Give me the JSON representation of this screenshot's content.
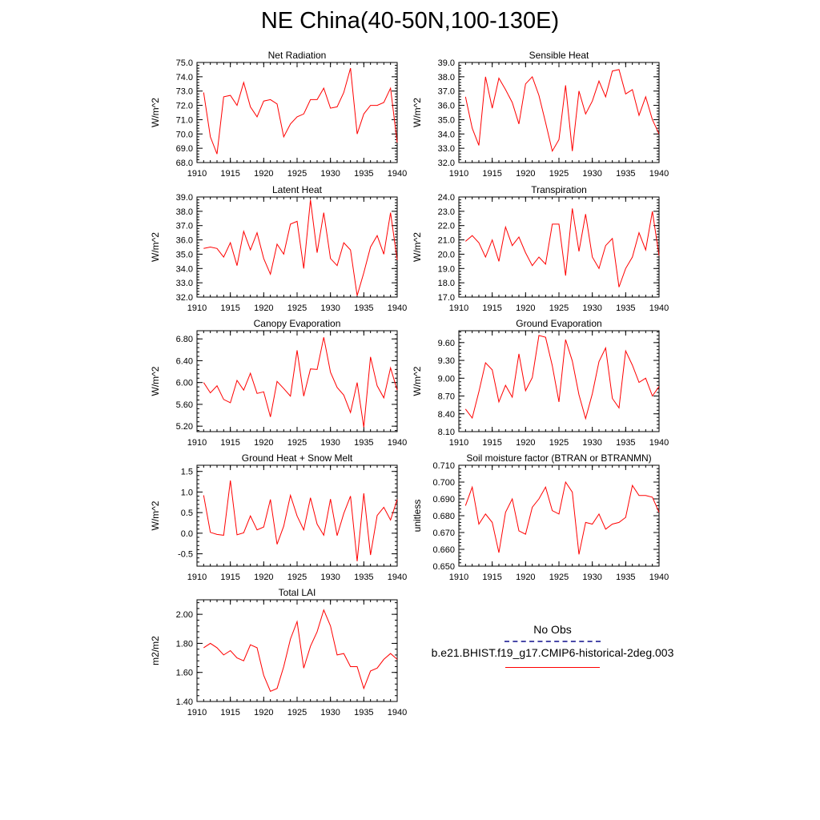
{
  "title": "NE China(40-50N,100-130E)",
  "legend": {
    "obs_label": "No Obs",
    "model_label": "b.e21.BHIST.f19_g17.CMIP6-historical-2deg.003",
    "obs_color": "#4a4aa8",
    "model_color": "#ff0000"
  },
  "chart_data": [
    {
      "type": "line",
      "title": "Net Radiation",
      "ylabel": "W/m^2",
      "xlim": [
        1910,
        1940
      ],
      "ylim": [
        68.0,
        75.0
      ],
      "yticks": [
        "68.0",
        "69.0",
        "70.0",
        "71.0",
        "72.0",
        "73.0",
        "74.0",
        "75.0"
      ],
      "ytick_values": [
        68,
        69,
        70,
        71,
        72,
        73,
        74,
        75
      ],
      "xticks": [
        1910,
        1915,
        1920,
        1925,
        1930,
        1935,
        1940
      ],
      "series": [
        {
          "color": "#ff0000",
          "x": [
            1911,
            1912,
            1913,
            1914,
            1915,
            1916,
            1917,
            1918,
            1919,
            1920,
            1921,
            1922,
            1923,
            1924,
            1925,
            1926,
            1927,
            1928,
            1929,
            1930,
            1931,
            1932,
            1933,
            1934,
            1935,
            1936,
            1937,
            1938,
            1939,
            1940
          ],
          "values": [
            72.9,
            69.8,
            68.6,
            72.6,
            72.7,
            72.0,
            73.6,
            71.9,
            71.2,
            72.3,
            72.4,
            72.1,
            69.8,
            70.7,
            71.2,
            71.4,
            72.4,
            72.4,
            73.2,
            71.8,
            71.9,
            72.9,
            74.6,
            70.0,
            71.4,
            72.0,
            72.0,
            72.2,
            73.2,
            69.4
          ]
        }
      ]
    },
    {
      "type": "line",
      "title": "Sensible Heat",
      "ylabel": "W/m^2",
      "xlim": [
        1910,
        1940
      ],
      "ylim": [
        32.0,
        39.0
      ],
      "yticks": [
        "32.0",
        "33.0",
        "34.0",
        "35.0",
        "36.0",
        "37.0",
        "38.0",
        "39.0"
      ],
      "ytick_values": [
        32,
        33,
        34,
        35,
        36,
        37,
        38,
        39
      ],
      "xticks": [
        1910,
        1915,
        1920,
        1925,
        1930,
        1935,
        1940
      ],
      "series": [
        {
          "color": "#ff0000",
          "x": [
            1911,
            1912,
            1913,
            1914,
            1915,
            1916,
            1917,
            1918,
            1919,
            1920,
            1921,
            1922,
            1923,
            1924,
            1925,
            1926,
            1927,
            1928,
            1929,
            1930,
            1931,
            1932,
            1933,
            1934,
            1935,
            1936,
            1937,
            1938,
            1939,
            1940
          ],
          "values": [
            36.6,
            34.4,
            33.2,
            38.0,
            35.8,
            37.9,
            37.1,
            36.2,
            34.7,
            37.5,
            38.0,
            36.7,
            34.8,
            32.8,
            33.6,
            37.4,
            32.8,
            37.0,
            35.4,
            36.3,
            37.7,
            36.6,
            38.4,
            38.5,
            36.8,
            37.1,
            35.3,
            36.6,
            35.0,
            34.0
          ]
        }
      ]
    },
    {
      "type": "line",
      "title": "Latent Heat",
      "ylabel": "W/m^2",
      "xlim": [
        1910,
        1940
      ],
      "ylim": [
        32.0,
        39.0
      ],
      "yticks": [
        "32.0",
        "33.0",
        "34.0",
        "35.0",
        "36.0",
        "37.0",
        "38.0",
        "39.0"
      ],
      "ytick_values": [
        32,
        33,
        34,
        35,
        36,
        37,
        38,
        39
      ],
      "xticks": [
        1910,
        1915,
        1920,
        1925,
        1930,
        1935,
        1940
      ],
      "series": [
        {
          "color": "#ff0000",
          "x": [
            1911,
            1912,
            1913,
            1914,
            1915,
            1916,
            1917,
            1918,
            1919,
            1920,
            1921,
            1922,
            1923,
            1924,
            1925,
            1926,
            1927,
            1928,
            1929,
            1930,
            1931,
            1932,
            1933,
            1934,
            1935,
            1936,
            1937,
            1938,
            1939,
            1940
          ],
          "values": [
            35.4,
            35.5,
            35.4,
            34.8,
            35.8,
            34.2,
            36.6,
            35.3,
            36.5,
            34.7,
            33.6,
            35.7,
            35.0,
            37.1,
            37.3,
            34.0,
            38.8,
            35.1,
            37.9,
            34.7,
            34.2,
            35.8,
            35.3,
            32.1,
            33.7,
            35.5,
            36.3,
            35.0,
            37.9,
            34.6
          ]
        }
      ]
    },
    {
      "type": "line",
      "title": "Transpiration",
      "ylabel": "W/m^2",
      "xlim": [
        1910,
        1940
      ],
      "ylim": [
        17.0,
        24.0
      ],
      "yticks": [
        "17.0",
        "18.0",
        "19.0",
        "20.0",
        "21.0",
        "22.0",
        "23.0",
        "24.0"
      ],
      "ytick_values": [
        17,
        18,
        19,
        20,
        21,
        22,
        23,
        24
      ],
      "xticks": [
        1910,
        1915,
        1920,
        1925,
        1930,
        1935,
        1940
      ],
      "series": [
        {
          "color": "#ff0000",
          "x": [
            1911,
            1912,
            1913,
            1914,
            1915,
            1916,
            1917,
            1918,
            1919,
            1920,
            1921,
            1922,
            1923,
            1924,
            1925,
            1926,
            1927,
            1928,
            1929,
            1930,
            1931,
            1932,
            1933,
            1934,
            1935,
            1936,
            1937,
            1938,
            1939,
            1940
          ],
          "values": [
            20.9,
            21.3,
            20.8,
            19.8,
            21.0,
            19.5,
            21.9,
            20.6,
            21.2,
            20.1,
            19.2,
            19.8,
            19.3,
            22.1,
            22.1,
            18.5,
            23.2,
            20.2,
            22.8,
            19.8,
            19.0,
            20.6,
            21.1,
            17.7,
            19.0,
            19.8,
            21.5,
            20.3,
            23.0,
            19.9
          ]
        }
      ]
    },
    {
      "type": "line",
      "title": "Canopy Evaporation",
      "ylabel": "W/m^2",
      "xlim": [
        1910,
        1940
      ],
      "ylim": [
        5.1,
        6.95
      ],
      "yticks": [
        "5.20",
        "5.60",
        "6.00",
        "6.40",
        "6.80"
      ],
      "ytick_values": [
        5.2,
        5.6,
        6.0,
        6.4,
        6.8
      ],
      "xticks": [
        1910,
        1915,
        1920,
        1925,
        1930,
        1935,
        1940
      ],
      "series": [
        {
          "color": "#ff0000",
          "x": [
            1911,
            1912,
            1913,
            1914,
            1915,
            1916,
            1917,
            1918,
            1919,
            1920,
            1921,
            1922,
            1923,
            1924,
            1925,
            1926,
            1927,
            1928,
            1929,
            1930,
            1931,
            1932,
            1933,
            1934,
            1935,
            1936,
            1937,
            1938,
            1939,
            1940
          ],
          "values": [
            6.0,
            5.81,
            5.94,
            5.69,
            5.63,
            6.04,
            5.86,
            6.17,
            5.8,
            5.83,
            5.37,
            6.02,
            5.89,
            5.75,
            6.59,
            5.75,
            6.25,
            6.24,
            6.83,
            6.19,
            5.91,
            5.77,
            5.45,
            6.0,
            5.18,
            6.47,
            5.94,
            5.72,
            6.27,
            5.86
          ]
        }
      ]
    },
    {
      "type": "line",
      "title": "Ground Evaporation",
      "ylabel": "W/m^2",
      "xlim": [
        1910,
        1940
      ],
      "ylim": [
        8.1,
        9.8
      ],
      "yticks": [
        "8.10",
        "8.40",
        "8.70",
        "9.00",
        "9.30",
        "9.60"
      ],
      "ytick_values": [
        8.1,
        8.4,
        8.7,
        9.0,
        9.3,
        9.6
      ],
      "xticks": [
        1910,
        1915,
        1920,
        1925,
        1930,
        1935,
        1940
      ],
      "series": [
        {
          "color": "#ff0000",
          "x": [
            1911,
            1912,
            1913,
            1914,
            1915,
            1916,
            1917,
            1918,
            1919,
            1920,
            1921,
            1922,
            1923,
            1924,
            1925,
            1926,
            1927,
            1928,
            1929,
            1930,
            1931,
            1932,
            1933,
            1934,
            1935,
            1936,
            1937,
            1938,
            1939,
            1940
          ],
          "values": [
            8.48,
            8.33,
            8.77,
            9.26,
            9.14,
            8.6,
            8.88,
            8.68,
            9.41,
            8.79,
            9.01,
            9.72,
            9.69,
            9.21,
            8.6,
            9.65,
            9.29,
            8.72,
            8.32,
            8.74,
            9.28,
            9.51,
            8.66,
            8.5,
            9.46,
            9.22,
            8.93,
            9.0,
            8.7,
            8.86
          ]
        }
      ]
    },
    {
      "type": "line",
      "title": "Ground Heat + Snow Melt",
      "ylabel": "W/m^2",
      "xlim": [
        1910,
        1940
      ],
      "ylim": [
        -0.8,
        1.65
      ],
      "yticks": [
        "-0.5",
        "0.0",
        "0.5",
        "1.0",
        "1.5"
      ],
      "ytick_values": [
        -0.5,
        0.0,
        0.5,
        1.0,
        1.5
      ],
      "xticks": [
        1910,
        1915,
        1920,
        1925,
        1930,
        1935,
        1940
      ],
      "series": [
        {
          "color": "#ff0000",
          "x": [
            1911,
            1912,
            1913,
            1914,
            1915,
            1916,
            1917,
            1918,
            1919,
            1920,
            1921,
            1922,
            1923,
            1924,
            1925,
            1926,
            1927,
            1928,
            1929,
            1930,
            1931,
            1932,
            1933,
            1934,
            1935,
            1936,
            1937,
            1938,
            1939,
            1940
          ],
          "values": [
            0.92,
            0.02,
            -0.03,
            -0.05,
            1.28,
            -0.04,
            0.01,
            0.42,
            0.08,
            0.15,
            0.82,
            -0.27,
            0.17,
            0.92,
            0.42,
            0.08,
            0.86,
            0.22,
            -0.05,
            0.83,
            -0.06,
            0.48,
            0.9,
            -0.68,
            0.97,
            -0.53,
            0.43,
            0.63,
            0.32,
            0.82
          ]
        }
      ]
    },
    {
      "type": "line",
      "title": "Soil moisture factor (BTRAN or BTRANMN)",
      "ylabel": "unitless",
      "xlim": [
        1910,
        1940
      ],
      "ylim": [
        0.65,
        0.71
      ],
      "yticks": [
        "0.650",
        "0.660",
        "0.670",
        "0.680",
        "0.690",
        "0.700",
        "0.710"
      ],
      "ytick_values": [
        0.65,
        0.66,
        0.67,
        0.68,
        0.69,
        0.7,
        0.71
      ],
      "xticks": [
        1910,
        1915,
        1920,
        1925,
        1930,
        1935,
        1940
      ],
      "series": [
        {
          "color": "#ff0000",
          "x": [
            1911,
            1912,
            1913,
            1914,
            1915,
            1916,
            1917,
            1918,
            1919,
            1920,
            1921,
            1922,
            1923,
            1924,
            1925,
            1926,
            1927,
            1928,
            1929,
            1930,
            1931,
            1932,
            1933,
            1934,
            1935,
            1936,
            1937,
            1938,
            1939,
            1940
          ],
          "values": [
            0.686,
            0.697,
            0.675,
            0.681,
            0.676,
            0.658,
            0.682,
            0.69,
            0.671,
            0.669,
            0.685,
            0.69,
            0.697,
            0.683,
            0.681,
            0.7,
            0.694,
            0.657,
            0.676,
            0.675,
            0.681,
            0.672,
            0.675,
            0.676,
            0.679,
            0.698,
            0.692,
            0.692,
            0.691,
            0.682
          ]
        }
      ]
    },
    {
      "type": "line",
      "title": "Total LAI",
      "ylabel": "m2/m2",
      "xlim": [
        1910,
        1940
      ],
      "ylim": [
        1.4,
        2.1
      ],
      "yticks": [
        "1.40",
        "1.60",
        "1.80",
        "2.00"
      ],
      "ytick_values": [
        1.4,
        1.6,
        1.8,
        2.0
      ],
      "xticks": [
        1910,
        1915,
        1920,
        1925,
        1930,
        1935,
        1940
      ],
      "series": [
        {
          "color": "#ff0000",
          "x": [
            1911,
            1912,
            1913,
            1914,
            1915,
            1916,
            1917,
            1918,
            1919,
            1920,
            1921,
            1922,
            1923,
            1924,
            1925,
            1926,
            1927,
            1928,
            1929,
            1930,
            1931,
            1932,
            1933,
            1934,
            1935,
            1936,
            1937,
            1938,
            1939,
            1940
          ],
          "values": [
            1.77,
            1.8,
            1.77,
            1.72,
            1.75,
            1.7,
            1.68,
            1.79,
            1.77,
            1.58,
            1.47,
            1.49,
            1.64,
            1.83,
            1.95,
            1.63,
            1.78,
            1.88,
            2.03,
            1.92,
            1.72,
            1.73,
            1.64,
            1.64,
            1.49,
            1.61,
            1.63,
            1.69,
            1.73,
            1.69
          ]
        }
      ]
    }
  ]
}
